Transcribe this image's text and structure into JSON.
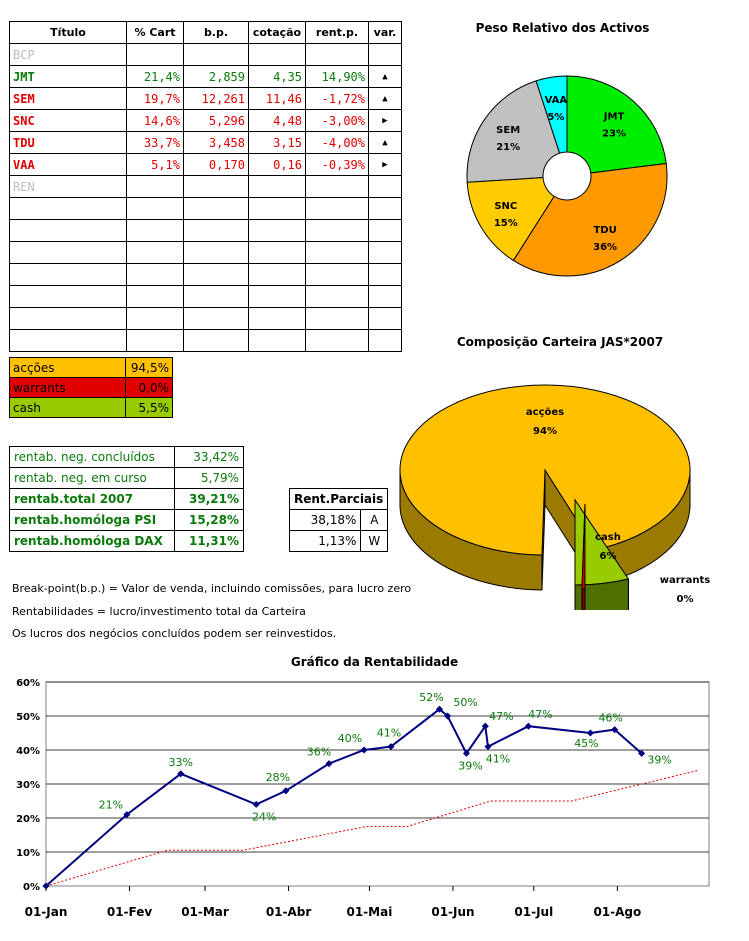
{
  "portfolio_table": {
    "headers": [
      "Título",
      "% Cart",
      "b.p.",
      "cotação",
      "rent.p.",
      "var."
    ],
    "rows": [
      {
        "name": "BCP",
        "pct": "",
        "bp": "",
        "quote": "",
        "rent": "",
        "var": "",
        "color": "grey"
      },
      {
        "name": "JMT",
        "pct": "21,4%",
        "bp": "2,859",
        "quote": "4,35",
        "rent": "14,90%",
        "var": "▲",
        "color": "green"
      },
      {
        "name": "SEM",
        "pct": "19,7%",
        "bp": "12,261",
        "quote": "11,46",
        "rent": "-1,72%",
        "var": "▲",
        "color": "red"
      },
      {
        "name": "SNC",
        "pct": "14,6%",
        "bp": "5,296",
        "quote": "4,48",
        "rent": "-3,00%",
        "var": "▶",
        "color": "red"
      },
      {
        "name": "TDU",
        "pct": "33,7%",
        "bp": "3,458",
        "quote": "3,15",
        "rent": "-4,00%",
        "var": "▲",
        "color": "red"
      },
      {
        "name": "VAA",
        "pct": "5,1%",
        "bp": "0,170",
        "quote": "0,16",
        "rent": "-0,39%",
        "var": "▶",
        "color": "red"
      },
      {
        "name": "REN",
        "pct": "",
        "bp": "",
        "quote": "",
        "rent": "",
        "var": "",
        "color": "grey"
      },
      {
        "name": "",
        "pct": "",
        "bp": "",
        "quote": "",
        "rent": "",
        "var": "",
        "color": "grey"
      },
      {
        "name": "",
        "pct": "",
        "bp": "",
        "quote": "",
        "rent": "",
        "var": "",
        "color": "grey"
      },
      {
        "name": "",
        "pct": "",
        "bp": "",
        "quote": "",
        "rent": "",
        "var": "",
        "color": "grey"
      },
      {
        "name": "",
        "pct": "",
        "bp": "",
        "quote": "",
        "rent": "",
        "var": "",
        "color": "grey"
      },
      {
        "name": "",
        "pct": "",
        "bp": "",
        "quote": "",
        "rent": "",
        "var": "",
        "color": "grey"
      },
      {
        "name": "",
        "pct": "",
        "bp": "",
        "quote": "",
        "rent": "",
        "var": "",
        "color": "grey"
      },
      {
        "name": "",
        "pct": "",
        "bp": "",
        "quote": "",
        "rent": "",
        "var": "",
        "color": "grey"
      }
    ]
  },
  "allocation": [
    {
      "label": "acções",
      "value": "94,5%",
      "bg": "#ffc000"
    },
    {
      "label": "warrants",
      "value": "0,0%",
      "bg": "#e00000"
    },
    {
      "label": "cash",
      "value": "5,5%",
      "bg": "#99cc00"
    }
  ],
  "stats": [
    {
      "label": "rentab. neg. concluídos",
      "value": "33,42%",
      "bold": false
    },
    {
      "label": "rentab. neg. em curso",
      "value": "5,79%",
      "bold": false
    },
    {
      "label": "rentab.total 2007",
      "value": "39,21%",
      "bold": true
    },
    {
      "label": "rentab.homóloga PSI",
      "value": "15,28%",
      "bold": true
    },
    {
      "label": "rentab.homóloga DAX",
      "value": "11,31%",
      "bold": true
    }
  ],
  "partials": {
    "header": "Rent.Parciais",
    "rows": [
      {
        "value": "38,18%",
        "tag": "A"
      },
      {
        "value": "1,13%",
        "tag": "W"
      }
    ]
  },
  "notes": [
    "Break-point(b.p.) = Valor de venda, incluindo comissões, para lucro zero",
    "Rentabilidades = lucro/investimento total da Carteira",
    "Os lucros dos negócios concluídos podem ser reinvestidos."
  ],
  "chart_data": [
    {
      "type": "pie",
      "title": "Peso Relativo dos Activos",
      "labels": [
        "JMT",
        "TDU",
        "SNC",
        "SEM",
        "VAA"
      ],
      "values": [
        23,
        36,
        15,
        21,
        5
      ],
      "value_labels": [
        "23%",
        "36%",
        "15%",
        "21%",
        "5%"
      ],
      "colors": [
        "#00ee00",
        "#ff9900",
        "#ffcc00",
        "#c0c0c0",
        "#00ffff"
      ],
      "donut": true
    },
    {
      "type": "pie",
      "title": "Composição Carteira JAS*2007",
      "labels": [
        "acções",
        "cash",
        "warrants"
      ],
      "values": [
        94,
        6,
        0
      ],
      "value_labels": [
        "94%",
        "6%",
        "0%"
      ],
      "colors": [
        "#ffc000",
        "#99cc00",
        "#e00000"
      ],
      "style": "3d-exploded"
    },
    {
      "type": "line",
      "title": "Gráfico da Rentabilidade",
      "x_tick_labels": [
        "01-Jan",
        "01-Fev",
        "01-Mar",
        "01-Abr",
        "01-Mai",
        "01-Jun",
        "01-Jul",
        "01-Ago"
      ],
      "ylim": [
        0,
        60
      ],
      "y_tick_labels": [
        "0%",
        "10%",
        "20%",
        "30%",
        "40%",
        "50%",
        "60%"
      ],
      "grid": true,
      "series": [
        {
          "color": "#000080",
          "style": "solid-markers",
          "x": [
            "2007-01-01",
            "2007-01-31",
            "2007-02-20",
            "2007-03-20",
            "2007-03-31",
            "2007-04-16",
            "2007-04-29",
            "2007-05-09",
            "2007-05-27",
            "2007-05-30",
            "2007-06-06",
            "2007-06-13",
            "2007-06-14",
            "2007-06-29",
            "2007-07-22",
            "2007-07-31",
            "2007-08-10"
          ],
          "values": [
            0,
            21,
            33,
            24,
            28,
            36,
            40,
            41,
            52,
            50,
            39,
            47,
            41,
            47,
            45,
            46,
            39
          ],
          "labels": [
            "",
            "21%",
            "33%",
            "24%",
            "28%",
            "36%",
            "40%",
            "41%",
            "52%",
            "50%",
            "39%",
            "47%",
            "41%",
            "47%",
            "45%",
            "46%",
            "39%"
          ]
        },
        {
          "color": "#e00000",
          "style": "dotted",
          "x": [
            "2007-01-01",
            "2007-02-15",
            "2007-03-15",
            "2007-04-30",
            "2007-05-15",
            "2007-06-15",
            "2007-07-15",
            "2007-08-31"
          ],
          "values": [
            0,
            10.5,
            10.5,
            17.5,
            17.5,
            25,
            25,
            34
          ]
        }
      ]
    }
  ]
}
